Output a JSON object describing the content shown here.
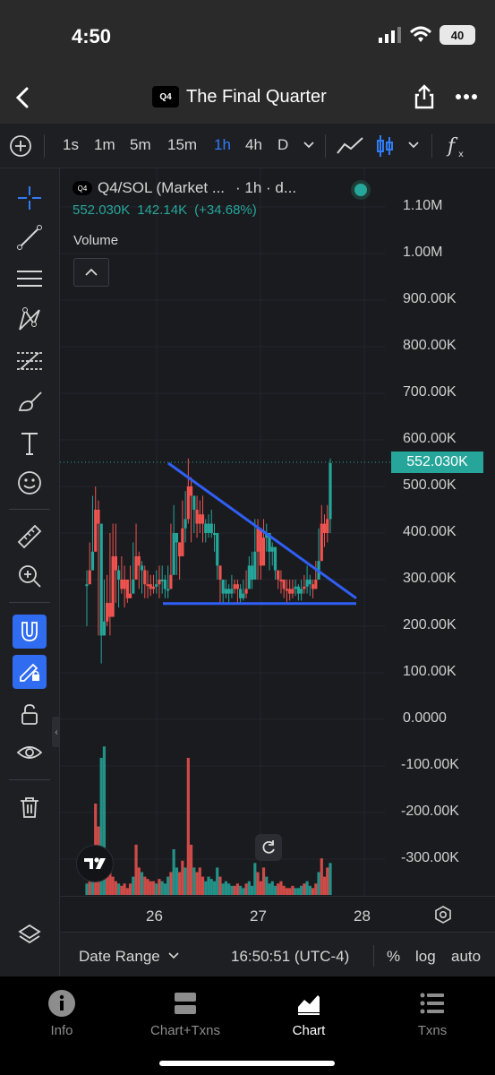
{
  "status_bar": {
    "time": "4:50",
    "battery": "40"
  },
  "nav": {
    "title": "The Final Quarter",
    "logo_text": "Q4",
    "back_icon": "chevron-left-icon",
    "share_icon": "share-icon",
    "more_icon": "more-horizontal-icon"
  },
  "toolbar": {
    "timeframes": [
      "1s",
      "1m",
      "5m",
      "15m",
      "1h",
      "4h",
      "D"
    ],
    "active_timeframe": "1h",
    "icons": [
      "add-circle-icon",
      "chevron-down-icon",
      "line-chart-icon",
      "candlestick-icon",
      "chevron-down-icon",
      "function-icon"
    ]
  },
  "legend": {
    "symbol": "Q4/SOL (Market ...",
    "interval": "· 1h · d...",
    "price": "552.030K",
    "change": "142.14K",
    "change_pct": "(+34.68%)",
    "volume_label": "Volume"
  },
  "chart_data": {
    "type": "candlestick",
    "symbol": "Q4/SOL",
    "interval": "1h",
    "last_price": "552.030K",
    "y_axis_labels": [
      "1.10M",
      "1.00M",
      "900.00K",
      "800.00K",
      "700.00K",
      "600.00K",
      "500.00K",
      "400.00K",
      "300.00K",
      "200.00K",
      "100.00K",
      "0.0000",
      "-100.00K",
      "-200.00K",
      "-300.00K"
    ],
    "x_axis_labels": [
      "26",
      "27",
      "28"
    ],
    "ylim": [
      -300000,
      1100000
    ],
    "candles": [
      [
        290,
        320,
        200,
        150
      ],
      [
        320,
        380,
        290,
        200
      ],
      [
        360,
        480,
        320,
        310
      ],
      [
        450,
        500,
        360,
        340
      ],
      [
        420,
        470,
        180,
        150
      ],
      [
        180,
        250,
        120,
        100
      ],
      [
        210,
        300,
        180,
        160
      ],
      [
        250,
        310,
        200,
        180
      ],
      [
        220,
        400,
        180,
        150
      ],
      [
        350,
        420,
        300,
        280
      ],
      [
        320,
        420,
        250,
        240
      ],
      [
        300,
        330,
        240,
        230
      ],
      [
        280,
        350,
        270,
        260
      ],
      [
        300,
        330,
        240,
        230
      ],
      [
        260,
        300,
        250,
        240
      ],
      [
        270,
        330,
        260,
        250
      ],
      [
        300,
        380,
        280,
        270
      ],
      [
        350,
        420,
        300,
        290
      ],
      [
        330,
        360,
        280,
        270
      ],
      [
        320,
        340,
        270,
        260
      ],
      [
        290,
        330,
        260,
        250
      ],
      [
        290,
        320,
        260,
        250
      ],
      [
        280,
        310,
        265,
        255
      ],
      [
        285,
        310,
        270,
        260
      ],
      [
        290,
        320,
        270,
        265
      ],
      [
        300,
        330,
        260,
        250
      ],
      [
        300,
        330,
        270,
        260
      ],
      [
        280,
        310,
        260,
        255
      ],
      [
        280,
        330,
        260,
        250
      ],
      [
        310,
        420,
        280,
        270
      ],
      [
        400,
        460,
        350,
        330
      ],
      [
        380,
        400,
        310,
        300
      ],
      [
        350,
        380,
        300,
        290
      ],
      [
        410,
        470,
        360,
        350
      ],
      [
        430,
        490,
        380,
        370
      ],
      [
        500,
        560,
        420,
        400
      ],
      [
        480,
        520,
        380,
        370
      ],
      [
        450,
        470,
        400,
        390
      ],
      [
        420,
        480,
        390,
        380
      ],
      [
        440,
        470,
        400,
        390
      ],
      [
        420,
        480,
        380,
        370
      ],
      [
        400,
        430,
        380,
        360
      ],
      [
        420,
        440,
        390,
        380
      ],
      [
        400,
        450,
        390,
        380
      ],
      [
        400,
        420,
        360,
        350
      ],
      [
        330,
        400,
        300,
        280
      ],
      [
        300,
        320,
        250,
        240
      ],
      [
        270,
        300,
        250,
        240
      ],
      [
        280,
        300,
        260,
        250
      ],
      [
        270,
        290,
        250,
        240
      ],
      [
        280,
        310,
        260,
        250
      ],
      [
        290,
        300,
        270,
        260
      ],
      [
        280,
        300,
        250,
        240
      ],
      [
        260,
        290,
        250,
        240
      ],
      [
        270,
        300,
        255,
        250
      ],
      [
        280,
        320,
        260,
        255
      ],
      [
        330,
        350,
        280,
        270
      ],
      [
        300,
        360,
        280,
        270
      ],
      [
        360,
        430,
        300,
        290
      ],
      [
        410,
        430,
        300,
        290
      ],
      [
        330,
        360,
        300,
        290
      ],
      [
        390,
        430,
        370,
        350
      ],
      [
        400,
        420,
        360,
        350
      ],
      [
        360,
        390,
        320,
        300
      ],
      [
        370,
        380,
        330,
        320
      ],
      [
        320,
        340,
        300,
        290
      ],
      [
        300,
        320,
        280,
        270
      ],
      [
        300,
        320,
        270,
        260
      ],
      [
        280,
        300,
        260,
        250
      ],
      [
        280,
        300,
        250,
        245
      ],
      [
        270,
        300,
        255,
        250
      ],
      [
        280,
        300,
        260,
        255
      ],
      [
        285,
        300,
        265,
        260
      ],
      [
        270,
        290,
        255,
        250
      ],
      [
        280,
        300,
        255,
        250
      ],
      [
        285,
        310,
        270,
        260
      ],
      [
        300,
        330,
        270,
        260
      ],
      [
        290,
        310,
        265,
        255
      ],
      [
        280,
        300,
        260,
        255
      ],
      [
        300,
        340,
        280,
        270
      ],
      [
        340,
        410,
        320,
        300
      ],
      [
        420,
        460,
        380,
        360
      ],
      [
        400,
        440,
        370,
        350
      ],
      [
        430,
        460,
        380,
        370
      ],
      [
        550,
        560,
        400,
        390
      ]
    ],
    "volumes": [
      5,
      10,
      18,
      40,
      30,
      60,
      65,
      12,
      15,
      8,
      6,
      5,
      4,
      5,
      3,
      5,
      8,
      22,
      12,
      10,
      8,
      7,
      6,
      6,
      5,
      7,
      6,
      5,
      8,
      10,
      20,
      12,
      10,
      15,
      12,
      60,
      22,
      12,
      10,
      12,
      8,
      6,
      8,
      7,
      6,
      12,
      8,
      5,
      6,
      5,
      4,
      4,
      5,
      4,
      3,
      5,
      6,
      4,
      14,
      10,
      6,
      12,
      8,
      5,
      6,
      4,
      5,
      6,
      4,
      3,
      3,
      4,
      3,
      3,
      4,
      5,
      6,
      4,
      3,
      5,
      10,
      16,
      8,
      12,
      14
    ],
    "annotations": [
      {
        "type": "descending-triangle",
        "color": "#2f5ff5",
        "upper_trendline": [
          [
            0.0,
            550000
          ],
          [
            1.0,
            260000
          ]
        ],
        "support_level": 260000
      }
    ],
    "grid": true
  },
  "bottom_strip": {
    "date_range": "Date Range",
    "time": "16:50:51 (UTC-4)",
    "percent": "%",
    "log": "log",
    "auto": "auto"
  },
  "tabbar": {
    "tabs": [
      {
        "label": "Info",
        "icon": "info-icon"
      },
      {
        "label": "Chart+Txns",
        "icon": "split-view-icon"
      },
      {
        "label": "Chart",
        "icon": "area-chart-icon"
      },
      {
        "label": "Txns",
        "icon": "list-icon"
      }
    ],
    "active": "Chart"
  },
  "colors": {
    "up": "#26a69a",
    "down": "#ef5350",
    "accent": "#2f7cf6",
    "trendline": "#2f5ff5"
  }
}
